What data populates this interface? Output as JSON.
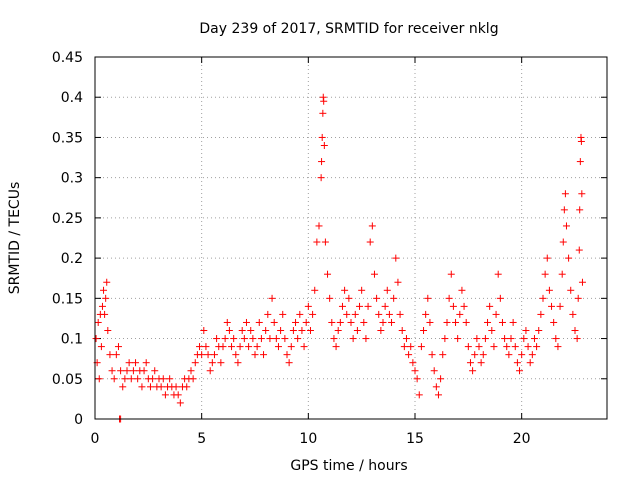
{
  "chart_data": {
    "type": "scatter",
    "title": "Day 239 of 2017, SRMTID for receiver nklg",
    "xlabel": "GPS time / hours",
    "ylabel": "SRMTID / TECUs",
    "xlim": [
      0,
      24
    ],
    "ylim": [
      0,
      0.45
    ],
    "xticks": [
      0,
      5,
      10,
      15,
      20
    ],
    "xtick_labels": [
      "0",
      "5",
      "10",
      "15",
      "20"
    ],
    "yticks": [
      0,
      0.05,
      0.1,
      0.15,
      0.2,
      0.25,
      0.3,
      0.35,
      0.4,
      0.45
    ],
    "ytick_labels": [
      "0",
      "0.05",
      "0.1",
      "0.15",
      "0.2",
      "0.25",
      "0.3",
      "0.35",
      "0.4",
      "0.45"
    ],
    "grid": true,
    "marker": "plus",
    "color": "#ff0000",
    "series": [
      {
        "name": "SRMTID",
        "points": [
          [
            0.05,
            0.1
          ],
          [
            0.1,
            0.07
          ],
          [
            0.15,
            0.12
          ],
          [
            0.2,
            0.05
          ],
          [
            0.25,
            0.13
          ],
          [
            0.3,
            0.09
          ],
          [
            0.35,
            0.14
          ],
          [
            0.4,
            0.16
          ],
          [
            0.45,
            0.13
          ],
          [
            0.5,
            0.15
          ],
          [
            0.55,
            0.17
          ],
          [
            0.6,
            0.11
          ],
          [
            0.7,
            0.08
          ],
          [
            0.8,
            0.06
          ],
          [
            0.9,
            0.05
          ],
          [
            1.0,
            0.08
          ],
          [
            1.1,
            0.09
          ],
          [
            1.2,
            0.06
          ],
          [
            1.3,
            0.04
          ],
          [
            1.4,
            0.05
          ],
          [
            1.5,
            0.06
          ],
          [
            1.6,
            0.07
          ],
          [
            1.7,
            0.05
          ],
          [
            1.8,
            0.06
          ],
          [
            1.9,
            0.07
          ],
          [
            2.0,
            0.05
          ],
          [
            2.1,
            0.06
          ],
          [
            2.2,
            0.04
          ],
          [
            2.3,
            0.06
          ],
          [
            2.4,
            0.07
          ],
          [
            2.5,
            0.05
          ],
          [
            2.6,
            0.04
          ],
          [
            2.7,
            0.05
          ],
          [
            2.8,
            0.06
          ],
          [
            2.9,
            0.04
          ],
          [
            3.0,
            0.05
          ],
          [
            3.1,
            0.04
          ],
          [
            3.2,
            0.05
          ],
          [
            3.3,
            0.03
          ],
          [
            3.4,
            0.04
          ],
          [
            3.5,
            0.05
          ],
          [
            3.6,
            0.04
          ],
          [
            3.7,
            0.03
          ],
          [
            3.8,
            0.04
          ],
          [
            3.9,
            0.03
          ],
          [
            4.0,
            0.02
          ],
          [
            4.1,
            0.04
          ],
          [
            4.2,
            0.05
          ],
          [
            4.3,
            0.04
          ],
          [
            4.4,
            0.05
          ],
          [
            4.5,
            0.06
          ],
          [
            4.6,
            0.05
          ],
          [
            4.7,
            0.07
          ],
          [
            4.8,
            0.08
          ],
          [
            4.9,
            0.09
          ],
          [
            5.0,
            0.08
          ],
          [
            5.1,
            0.11
          ],
          [
            5.2,
            0.09
          ],
          [
            5.3,
            0.08
          ],
          [
            5.4,
            0.06
          ],
          [
            5.5,
            0.07
          ],
          [
            5.6,
            0.08
          ],
          [
            5.7,
            0.1
          ],
          [
            5.8,
            0.09
          ],
          [
            5.9,
            0.07
          ],
          [
            6.0,
            0.09
          ],
          [
            6.1,
            0.1
          ],
          [
            6.2,
            0.12
          ],
          [
            6.3,
            0.11
          ],
          [
            6.4,
            0.09
          ],
          [
            6.5,
            0.1
          ],
          [
            6.6,
            0.08
          ],
          [
            6.7,
            0.07
          ],
          [
            6.8,
            0.09
          ],
          [
            6.9,
            0.11
          ],
          [
            7.0,
            0.1
          ],
          [
            7.1,
            0.12
          ],
          [
            7.2,
            0.09
          ],
          [
            7.3,
            0.11
          ],
          [
            7.4,
            0.1
          ],
          [
            7.5,
            0.08
          ],
          [
            7.6,
            0.09
          ],
          [
            7.7,
            0.12
          ],
          [
            7.8,
            0.1
          ],
          [
            7.9,
            0.08
          ],
          [
            8.0,
            0.11
          ],
          [
            8.1,
            0.13
          ],
          [
            8.2,
            0.1
          ],
          [
            8.3,
            0.15
          ],
          [
            8.4,
            0.12
          ],
          [
            8.5,
            0.1
          ],
          [
            8.6,
            0.09
          ],
          [
            8.7,
            0.11
          ],
          [
            8.8,
            0.13
          ],
          [
            8.9,
            0.1
          ],
          [
            9.0,
            0.08
          ],
          [
            9.1,
            0.07
          ],
          [
            9.2,
            0.09
          ],
          [
            9.3,
            0.11
          ],
          [
            9.4,
            0.12
          ],
          [
            9.5,
            0.1
          ],
          [
            9.6,
            0.13
          ],
          [
            9.7,
            0.11
          ],
          [
            9.8,
            0.09
          ],
          [
            9.9,
            0.12
          ],
          [
            10.0,
            0.14
          ],
          [
            10.1,
            0.11
          ],
          [
            10.2,
            0.13
          ],
          [
            10.3,
            0.16
          ],
          [
            10.4,
            0.22
          ],
          [
            10.5,
            0.24
          ],
          [
            10.6,
            0.3
          ],
          [
            10.62,
            0.32
          ],
          [
            10.65,
            0.35
          ],
          [
            10.68,
            0.38
          ],
          [
            10.7,
            0.4
          ],
          [
            10.72,
            0.395
          ],
          [
            10.75,
            0.34
          ],
          [
            10.8,
            0.22
          ],
          [
            10.9,
            0.18
          ],
          [
            11.0,
            0.15
          ],
          [
            11.1,
            0.12
          ],
          [
            11.2,
            0.1
          ],
          [
            11.3,
            0.09
          ],
          [
            11.4,
            0.11
          ],
          [
            11.5,
            0.12
          ],
          [
            11.6,
            0.14
          ],
          [
            11.7,
            0.16
          ],
          [
            11.8,
            0.13
          ],
          [
            11.9,
            0.15
          ],
          [
            12.0,
            0.12
          ],
          [
            12.1,
            0.1
          ],
          [
            12.2,
            0.13
          ],
          [
            12.3,
            0.11
          ],
          [
            12.4,
            0.14
          ],
          [
            12.5,
            0.16
          ],
          [
            12.6,
            0.12
          ],
          [
            12.7,
            0.1
          ],
          [
            12.8,
            0.14
          ],
          [
            12.9,
            0.22
          ],
          [
            13.0,
            0.24
          ],
          [
            13.1,
            0.18
          ],
          [
            13.2,
            0.15
          ],
          [
            13.3,
            0.13
          ],
          [
            13.4,
            0.11
          ],
          [
            13.5,
            0.12
          ],
          [
            13.6,
            0.14
          ],
          [
            13.7,
            0.16
          ],
          [
            13.8,
            0.13
          ],
          [
            13.9,
            0.12
          ],
          [
            14.0,
            0.15
          ],
          [
            14.1,
            0.2
          ],
          [
            14.2,
            0.17
          ],
          [
            14.3,
            0.13
          ],
          [
            14.4,
            0.11
          ],
          [
            14.5,
            0.09
          ],
          [
            14.6,
            0.1
          ],
          [
            14.7,
            0.08
          ],
          [
            14.8,
            0.09
          ],
          [
            14.9,
            0.07
          ],
          [
            15.0,
            0.06
          ],
          [
            15.1,
            0.05
          ],
          [
            15.2,
            0.03
          ],
          [
            15.3,
            0.09
          ],
          [
            15.4,
            0.11
          ],
          [
            15.5,
            0.13
          ],
          [
            15.6,
            0.15
          ],
          [
            15.7,
            0.12
          ],
          [
            15.8,
            0.08
          ],
          [
            15.9,
            0.06
          ],
          [
            16.0,
            0.04
          ],
          [
            16.1,
            0.03
          ],
          [
            16.2,
            0.05
          ],
          [
            16.3,
            0.08
          ],
          [
            16.4,
            0.1
          ],
          [
            16.5,
            0.12
          ],
          [
            16.6,
            0.15
          ],
          [
            16.7,
            0.18
          ],
          [
            16.8,
            0.14
          ],
          [
            16.9,
            0.12
          ],
          [
            17.0,
            0.1
          ],
          [
            17.1,
            0.13
          ],
          [
            17.2,
            0.16
          ],
          [
            17.3,
            0.14
          ],
          [
            17.4,
            0.12
          ],
          [
            17.5,
            0.09
          ],
          [
            17.6,
            0.07
          ],
          [
            17.7,
            0.06
          ],
          [
            17.8,
            0.08
          ],
          [
            17.9,
            0.1
          ],
          [
            18.0,
            0.09
          ],
          [
            18.1,
            0.07
          ],
          [
            18.2,
            0.08
          ],
          [
            18.3,
            0.1
          ],
          [
            18.4,
            0.12
          ],
          [
            18.5,
            0.14
          ],
          [
            18.6,
            0.11
          ],
          [
            18.7,
            0.09
          ],
          [
            18.8,
            0.13
          ],
          [
            18.9,
            0.18
          ],
          [
            19.0,
            0.15
          ],
          [
            19.1,
            0.12
          ],
          [
            19.2,
            0.1
          ],
          [
            19.3,
            0.09
          ],
          [
            19.4,
            0.08
          ],
          [
            19.5,
            0.1
          ],
          [
            19.6,
            0.12
          ],
          [
            19.7,
            0.09
          ],
          [
            19.8,
            0.07
          ],
          [
            19.9,
            0.06
          ],
          [
            20.0,
            0.08
          ],
          [
            20.1,
            0.1
          ],
          [
            20.2,
            0.11
          ],
          [
            20.3,
            0.09
          ],
          [
            20.4,
            0.07
          ],
          [
            20.5,
            0.08
          ],
          [
            20.6,
            0.1
          ],
          [
            20.7,
            0.09
          ],
          [
            20.8,
            0.11
          ],
          [
            20.9,
            0.13
          ],
          [
            21.0,
            0.15
          ],
          [
            21.1,
            0.18
          ],
          [
            21.2,
            0.2
          ],
          [
            21.3,
            0.16
          ],
          [
            21.4,
            0.14
          ],
          [
            21.5,
            0.12
          ],
          [
            21.6,
            0.1
          ],
          [
            21.7,
            0.09
          ],
          [
            21.8,
            0.14
          ],
          [
            21.9,
            0.18
          ],
          [
            21.95,
            0.22
          ],
          [
            22.0,
            0.26
          ],
          [
            22.05,
            0.28
          ],
          [
            22.1,
            0.24
          ],
          [
            22.2,
            0.2
          ],
          [
            22.3,
            0.16
          ],
          [
            22.4,
            0.13
          ],
          [
            22.5,
            0.11
          ],
          [
            22.6,
            0.1
          ],
          [
            22.65,
            0.15
          ],
          [
            22.7,
            0.21
          ],
          [
            22.72,
            0.26
          ],
          [
            22.75,
            0.32
          ],
          [
            22.78,
            0.35
          ],
          [
            22.8,
            0.345
          ],
          [
            22.82,
            0.28
          ],
          [
            22.85,
            0.17
          ],
          [
            1.15,
            0.0
          ],
          [
            1.2,
            0.0
          ]
        ]
      }
    ]
  }
}
